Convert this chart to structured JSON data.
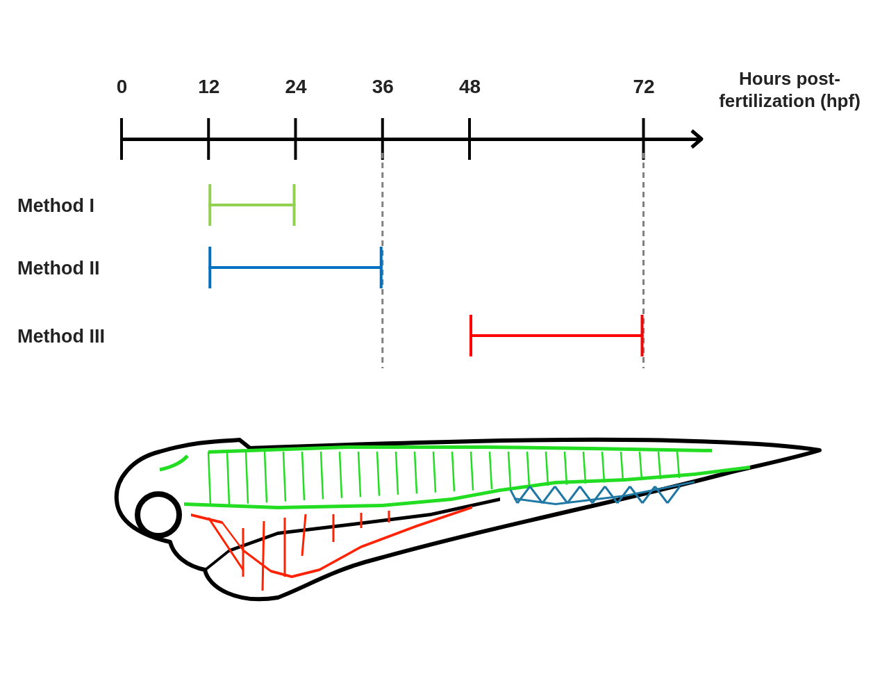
{
  "chart_data": {
    "type": "bar",
    "orientation": "horizontal",
    "xlabel": "Hours post-fertilization (hpf)",
    "categories": [
      "Method I",
      "Method II",
      "Method III"
    ],
    "base": [
      12,
      12,
      48
    ],
    "values": [
      12,
      24,
      24
    ],
    "colors": [
      "#92d050",
      "#0070c0",
      "#ff0000"
    ],
    "xlim": [
      0,
      80
    ],
    "xticks": [
      0,
      12,
      24,
      36,
      48,
      72
    ],
    "ref_lines": [
      {
        "axis": "x",
        "value": 36,
        "color": "#808080",
        "line_style": "dashed"
      },
      {
        "axis": "x",
        "value": 72,
        "color": "#808080",
        "line_style": "dashed"
      }
    ]
  }
}
